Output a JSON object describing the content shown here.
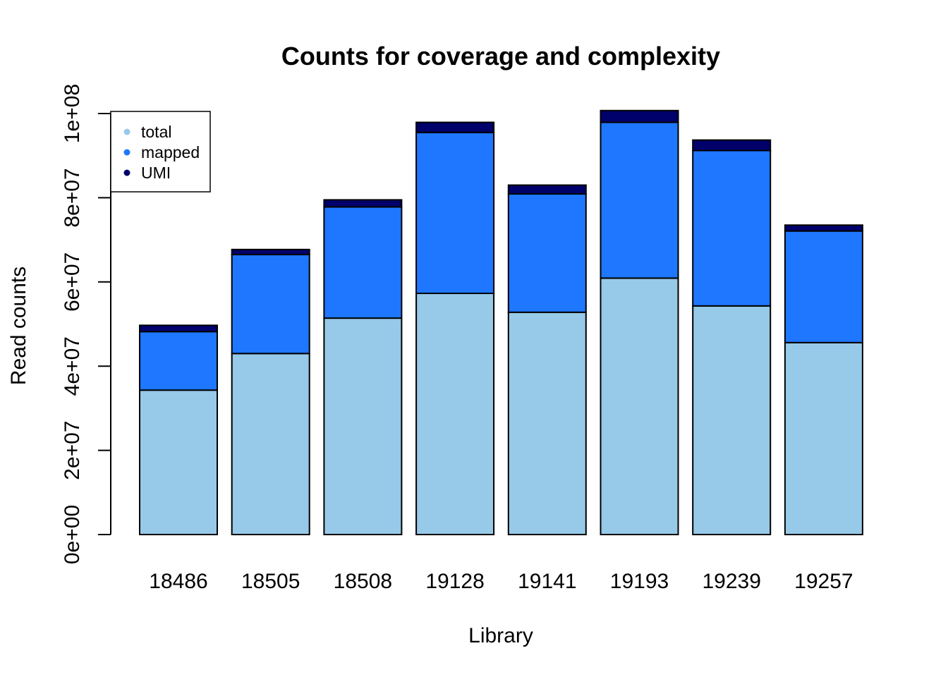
{
  "chart_data": {
    "type": "bar",
    "stacked": true,
    "title": "Counts for coverage and complexity",
    "xlabel": "Library",
    "ylabel": "Read counts",
    "categories": [
      "18486",
      "18505",
      "18508",
      "19128",
      "19141",
      "19193",
      "19239",
      "19257"
    ],
    "series": [
      {
        "name": "total",
        "color": "#97C9E8",
        "values": [
          34300000,
          43000000,
          51400000,
          57300000,
          52800000,
          60900000,
          54300000,
          45600000
        ]
      },
      {
        "name": "mapped",
        "color": "#1F77FF",
        "values": [
          13900000,
          23500000,
          26400000,
          38200000,
          28100000,
          37000000,
          36900000,
          26500000
        ]
      },
      {
        "name": "UMI",
        "color": "#00006B",
        "values": [
          1500000,
          1200000,
          1700000,
          2400000,
          2100000,
          2800000,
          2500000,
          1400000
        ]
      }
    ],
    "ylim": [
      0,
      100000000
    ],
    "yticks": [
      {
        "value": 0,
        "label": "0e+00"
      },
      {
        "value": 20000000,
        "label": "2e+07"
      },
      {
        "value": 40000000,
        "label": "4e+07"
      },
      {
        "value": 60000000,
        "label": "6e+07"
      },
      {
        "value": 80000000,
        "label": "8e+07"
      },
      {
        "value": 100000000,
        "label": "1e+08"
      }
    ],
    "legend_position": "top-left",
    "grid": false
  }
}
